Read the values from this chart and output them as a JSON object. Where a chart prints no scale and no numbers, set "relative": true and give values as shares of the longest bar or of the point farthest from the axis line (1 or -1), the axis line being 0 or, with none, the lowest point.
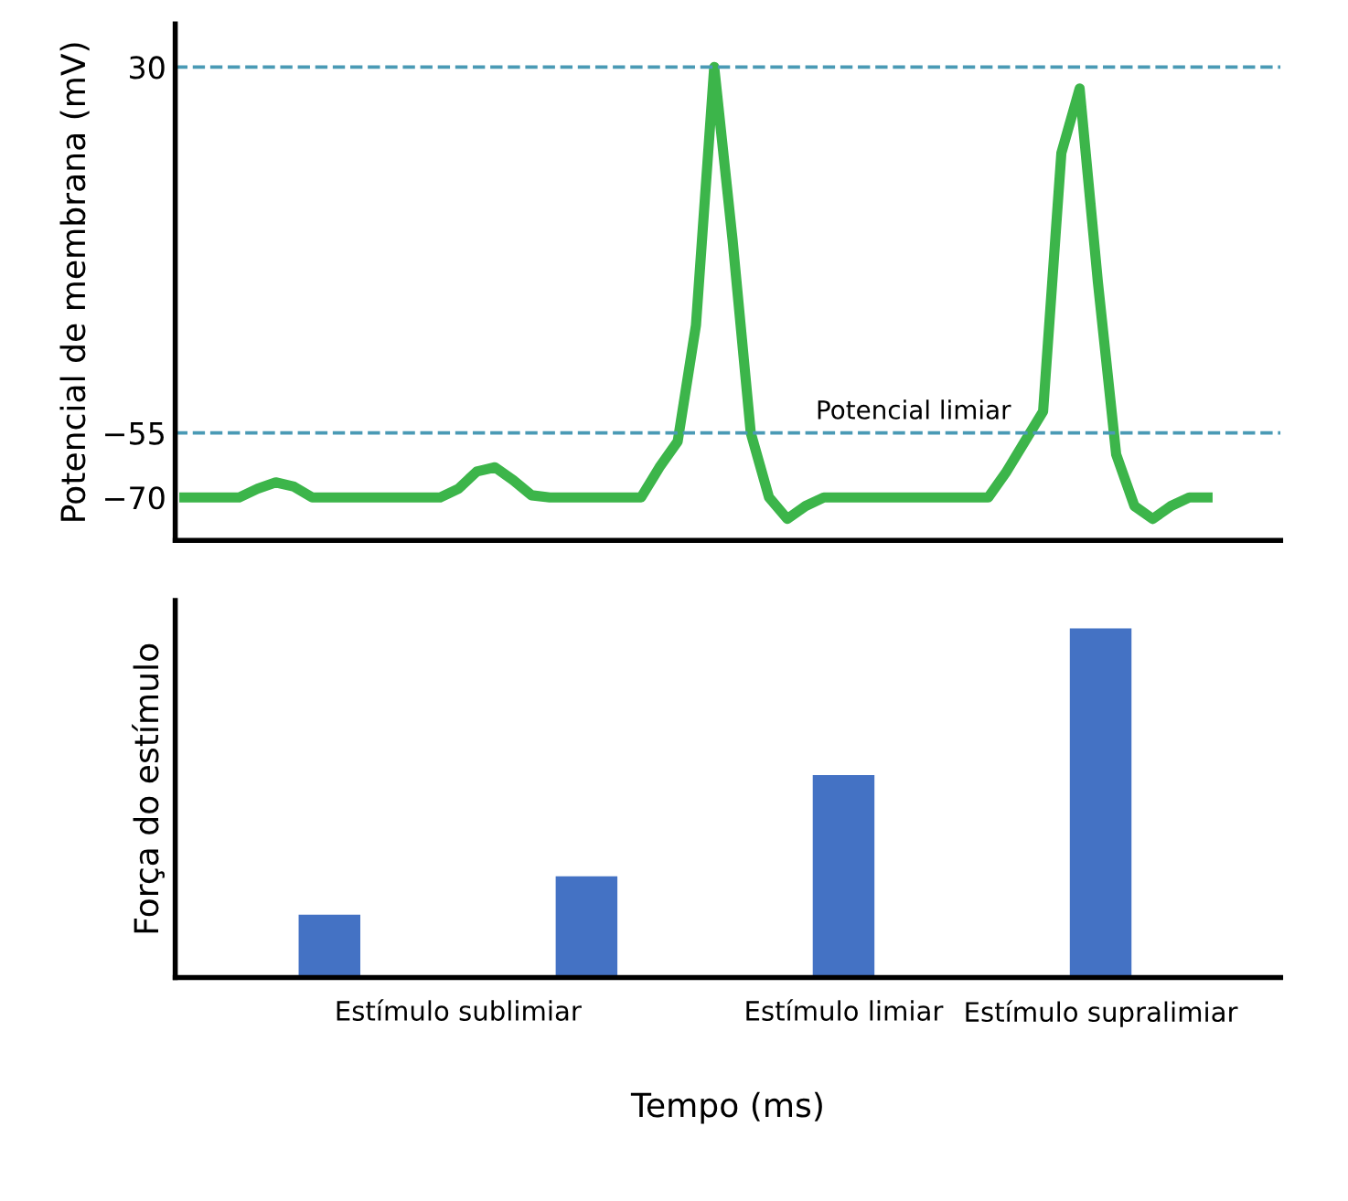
{
  "chart_data": [
    {
      "type": "line",
      "ylabel": "Potencial de membrana (mV)",
      "categories": [
        null,
        null,
        null,
        null,
        null,
        null,
        null,
        null,
        null,
        null,
        null,
        null,
        null,
        null,
        null,
        null,
        null,
        null,
        null,
        null,
        null,
        null,
        null,
        null,
        null,
        null,
        null,
        null,
        null,
        null,
        null,
        null,
        null,
        null,
        null,
        null,
        null,
        null,
        null,
        null,
        null,
        null,
        null,
        null,
        null,
        null,
        null,
        null,
        null,
        null,
        null,
        null,
        null,
        null,
        null,
        null,
        null
      ],
      "series": [
        {
          "color": "#3cb54a",
          "values": [
            -70,
            -70,
            -70,
            -70,
            -68,
            -66.5,
            -67.5,
            -70,
            -70,
            -70,
            -70,
            -70,
            -70,
            -70,
            -70,
            -68,
            -64,
            -63,
            -66,
            -69.5,
            -70,
            -70,
            -70,
            -70,
            -70,
            -70,
            -63,
            -57,
            -30,
            30,
            -10,
            -55,
            -70,
            -75,
            -72,
            -70,
            -70,
            -70,
            -70,
            -70,
            -70,
            -70,
            -70,
            -70,
            -70,
            -64,
            -57,
            -50,
            10,
            25,
            -20,
            -60,
            -72,
            -75,
            -72,
            -70,
            -70
          ]
        }
      ],
      "ylim": [
        -80,
        40
      ],
      "yticks": [
        30,
        -55,
        -70
      ],
      "ref_lines": [
        {
          "axis": "y",
          "value": 30,
          "color": "#4a9ab5",
          "line_style": "dashed"
        },
        {
          "axis": "y",
          "value": -55,
          "label": "Potencial limiar",
          "color": "#4a9ab5",
          "line_style": "dashed"
        }
      ],
      "tick_labels": "y",
      "grid": false,
      "line_style": "solid",
      "marker": "none"
    },
    {
      "type": "bar",
      "ylabel": "Força do estímulo",
      "xlabel": "Tempo (ms)",
      "categories": [
        null,
        null,
        null,
        null
      ],
      "values": [
        0.18,
        0.29,
        0.58,
        1
      ],
      "color": "#4472c4",
      "relative": true,
      "annotations": [
        "Estímulo sublimiar",
        "Estímulo limiar",
        "Estímulo supralimiar"
      ],
      "tick_labels": false,
      "grid": false
    }
  ]
}
